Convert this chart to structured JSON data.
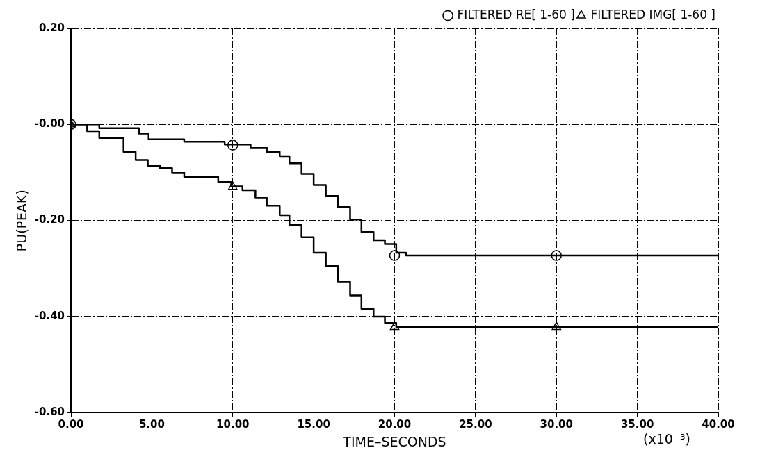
{
  "chart_data": {
    "type": "step",
    "xlabel": "TIME–SECONDS",
    "ylabel": "PU(PEAK)",
    "annotations": [
      "(x10⁻³)"
    ],
    "xlim": [
      0,
      40
    ],
    "xticks": [
      {
        "value": 0,
        "label": "0.00"
      },
      {
        "value": 5,
        "label": "5.00"
      },
      {
        "value": 10,
        "label": "10.00"
      },
      {
        "value": 15,
        "label": "15.00"
      },
      {
        "value": 20,
        "label": "20.00"
      },
      {
        "value": 25,
        "label": "25.00"
      },
      {
        "value": 30,
        "label": "30.00"
      },
      {
        "value": 35,
        "label": "35.00"
      },
      {
        "value": 40,
        "label": "40.00"
      }
    ],
    "ylim": [
      -0.6,
      0.2
    ],
    "yticks": [
      {
        "value": 0.2,
        "label": "0.20"
      },
      {
        "value": 0,
        "label": "-0.00"
      },
      {
        "value": -0.2,
        "label": "-0.20"
      },
      {
        "value": -0.4,
        "label": "-0.40"
      },
      {
        "value": -0.6,
        "label": "-0.60"
      }
    ],
    "grid": true,
    "legend": "top right",
    "line_style": "solid",
    "series": [
      {
        "type": "step",
        "color": "#000000",
        "marker": "none",
        "x": [
          0,
          1.75,
          4.2,
          4.8,
          7,
          9.5,
          11.1,
          12.1,
          12.9,
          13.5,
          14.25,
          15,
          15.75,
          16.5,
          17.25,
          17.95,
          18.7,
          19.4,
          20.1,
          20.7,
          40
        ],
        "values": [
          0,
          -0.008,
          -0.019,
          -0.031,
          -0.036,
          -0.042,
          -0.048,
          -0.057,
          -0.066,
          -0.081,
          -0.103,
          -0.126,
          -0.149,
          -0.172,
          -0.198,
          -0.224,
          -0.241,
          -0.249,
          -0.267,
          -0.273,
          -0.273
        ]
      },
      {
        "type": "step",
        "color": "#000000",
        "marker": "none",
        "x": [
          0,
          1,
          1.75,
          3.25,
          4,
          4.75,
          5.5,
          6.25,
          7,
          9.1,
          9.9,
          10.6,
          11.4,
          12.1,
          12.9,
          13.5,
          14.25,
          15,
          15.75,
          16.5,
          17.25,
          17.95,
          18.7,
          19.4,
          20.1,
          40
        ],
        "values": [
          0,
          -0.014,
          -0.028,
          -0.057,
          -0.074,
          -0.086,
          -0.091,
          -0.1,
          -0.109,
          -0.12,
          -0.129,
          -0.137,
          -0.152,
          -0.169,
          -0.189,
          -0.209,
          -0.235,
          -0.267,
          -0.295,
          -0.327,
          -0.356,
          -0.384,
          -0.4,
          -0.413,
          -0.422,
          -0.422
        ]
      },
      {
        "type": "scatter",
        "name": "FILTERED RE[ 1-60 ]",
        "color": "#000000",
        "marker": "circle",
        "x": [
          0,
          10,
          20,
          30
        ],
        "values": [
          0,
          -0.043,
          -0.273,
          -0.273
        ]
      },
      {
        "type": "scatter",
        "name": "FILTERED IMG[ 1-60 ]",
        "color": "#000000",
        "marker": "triangle",
        "x": [
          0,
          10,
          20,
          30
        ],
        "values": [
          0,
          -0.13,
          -0.422,
          -0.422
        ]
      }
    ]
  }
}
